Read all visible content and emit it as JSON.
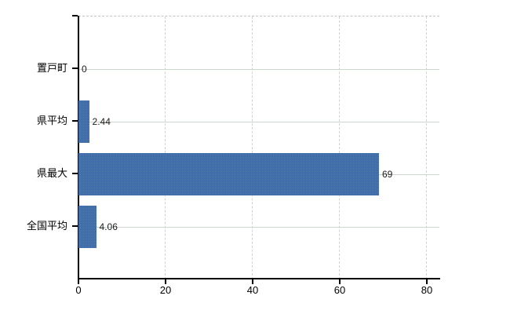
{
  "chart_data": {
    "type": "bar",
    "orientation": "horizontal",
    "title": "",
    "xlabel": "",
    "ylabel": "",
    "categories": [
      "置戸町",
      "県平均",
      "県最大",
      "全国平均"
    ],
    "values": [
      0,
      2.44,
      69,
      4.06
    ],
    "value_labels": [
      "0",
      "2.44",
      "69",
      "4.06"
    ],
    "x_ticks": [
      0,
      20,
      40,
      60,
      80
    ],
    "x_tick_labels": [
      "0",
      "20",
      "40",
      "60",
      "80"
    ],
    "xlim": [
      0,
      82.9
    ],
    "grid": true,
    "legend": false,
    "bar_color": "#3e6dac",
    "h_gridline_color": "#cdd6cd",
    "v_gridline_color": "#d2d2d2",
    "axis_color": "#000000",
    "text_color": "#000000"
  }
}
